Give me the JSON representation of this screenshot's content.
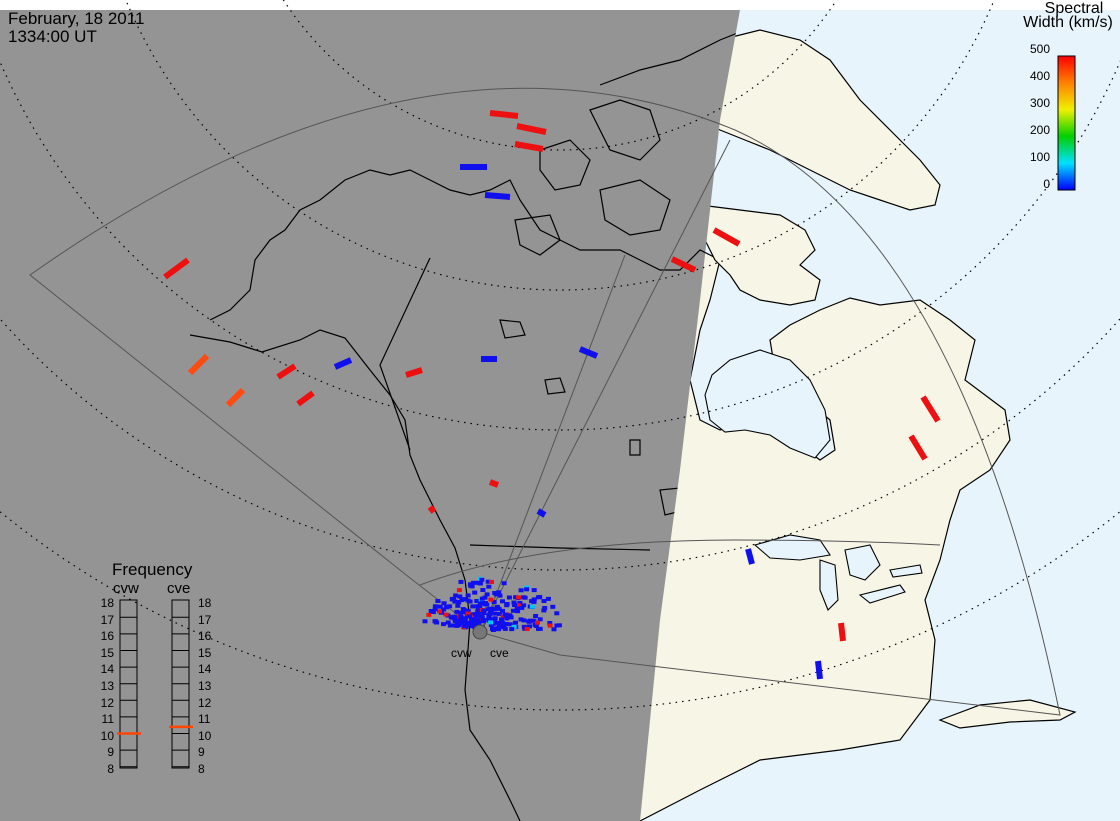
{
  "header": {
    "date": "February, 18 2011",
    "time": "1334:00 UT"
  },
  "legend": {
    "title_line1": "Spectral",
    "title_line2": "Width (km/s)",
    "ticks": [
      "500",
      "400",
      "300",
      "200",
      "100",
      "0"
    ],
    "min": 0,
    "max": 500
  },
  "frequency": {
    "title": "Frequency",
    "radars": [
      {
        "name": "cvw",
        "value_mhz": 10.5
      },
      {
        "name": "cve",
        "value_mhz": 10.9
      }
    ],
    "scale": [
      "18",
      "17",
      "16",
      "15",
      "14",
      "13",
      "12",
      "11",
      "10",
      "9",
      "8"
    ],
    "indicator_color": "#ff4500"
  },
  "stations": [
    {
      "name": "cvw"
    },
    {
      "name": "cve"
    }
  ],
  "colors": {
    "night": "#949494",
    "day_ocean": "#e8f4fc",
    "day_land": "#f7f5e6",
    "low_width": "#1010ee",
    "high_width": "#ee1010",
    "mid_high_width": "#ff4a10"
  }
}
